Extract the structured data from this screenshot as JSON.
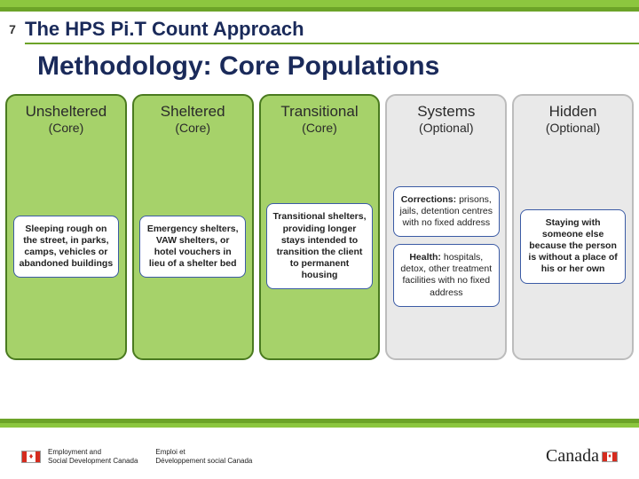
{
  "page": {
    "number": "7",
    "hps_title": "The HPS Pi.T Count Approach",
    "main_title": "Methodology: Core Populations"
  },
  "theme": {
    "accent_green": "#8cc63f",
    "accent_green_dark": "#6ca328",
    "core_bg": "#a6d26a",
    "core_border": "#4a7a1f",
    "optional_bg": "#e9e9e9",
    "optional_border": "#bcbcbc",
    "box_border": "#3b5ba5",
    "title_color": "#1a2a5a",
    "footer_red": "#d52b1e"
  },
  "columns": [
    {
      "title": "Unsheltered",
      "subtitle": "(Core)",
      "variant": "core",
      "boxes": [
        {
          "bold": "Sleeping rough on the street, in parks, camps, vehicles or abandoned buildings",
          "rest": ""
        }
      ]
    },
    {
      "title": "Sheltered",
      "subtitle": "(Core)",
      "variant": "core",
      "boxes": [
        {
          "bold": "Emergency shelters, VAW shelters, or hotel vouchers in lieu of a shelter bed",
          "rest": ""
        }
      ]
    },
    {
      "title": "Transitional",
      "subtitle": "(Core)",
      "variant": "core",
      "boxes": [
        {
          "bold": "Transitional shelters, providing longer stays intended to transition the client to permanent housing",
          "rest": ""
        }
      ]
    },
    {
      "title": "Systems",
      "subtitle": "(Optional)",
      "variant": "optional",
      "boxes": [
        {
          "bold": "Corrections:",
          "rest": " prisons, jails, detention centres with no fixed address"
        },
        {
          "bold": "Health:",
          "rest": " hospitals, detox, other treatment facilities with no fixed address"
        }
      ]
    },
    {
      "title": "Hidden",
      "subtitle": "(Optional)",
      "variant": "optional",
      "boxes": [
        {
          "bold": "Staying with someone else because the person is without a place of his or her own",
          "rest": ""
        }
      ]
    }
  ],
  "footer": {
    "dept_en_line1": "Employment and",
    "dept_en_line2": "Social Development Canada",
    "dept_fr_line1": "Emploi et",
    "dept_fr_line2": "Développement social Canada",
    "wordmark": "Canada"
  }
}
